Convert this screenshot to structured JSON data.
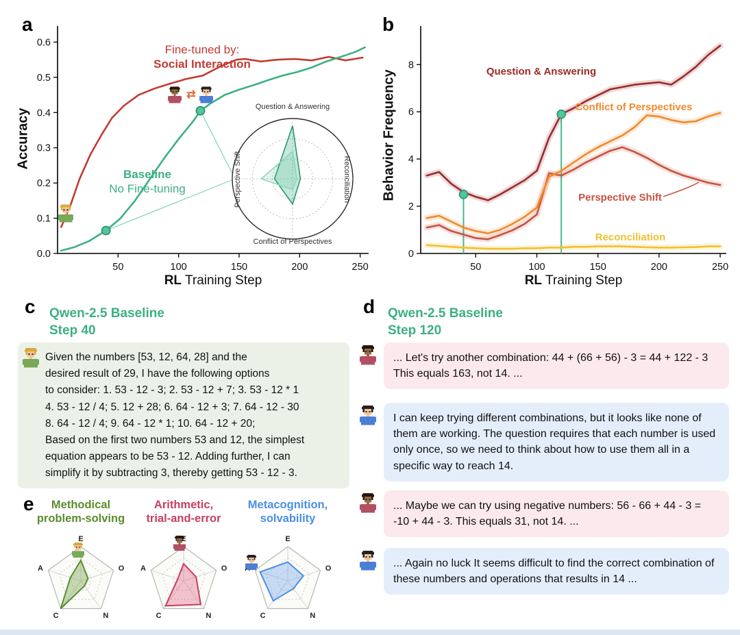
{
  "figure": {
    "panel_a": {
      "label": "a",
      "ylabel": "Accuracy",
      "xlabel_bold": "RL",
      "xlabel_rest": " Training Step",
      "ann_finetuned_line1": "Fine-tuned by:",
      "ann_finetuned_line2": "Social Interaction",
      "ann_baseline_line1": "Baseline",
      "ann_baseline_line2": "No Fine-tuning",
      "inset_axis_top": "Question & Answering",
      "inset_axis_right": "Reconciliation",
      "inset_axis_bottom": "Conflict of Perspectives",
      "inset_axis_left": "Perspective Shift"
    },
    "panel_b": {
      "label": "b",
      "ylabel": "Behavior Frequency",
      "xlabel_bold": "RL",
      "xlabel_rest": " Training Step"
    },
    "panel_c": {
      "label": "c",
      "title": "Qwen-2.5 Baseline\nStep 40",
      "transcript": "Given the numbers [53, 12, 64, 28] and the\ndesired result of 29, I have the following options\nto consider: 1. 53 - 12 - 3; 2. 53 - 12 + 7; 3. 53 - 12 * 1\n4. 53 - 12 / 4; 5. 12 + 28; 6. 64 - 12 + 3; 7. 64 - 12 - 30\n8. 64 - 12 / 4; 9. 64 - 12 * 1; 10. 64 - 12 + 20;\nBased on the first two numbers 53 and 12, the simplest\nequation appears to be 53 - 12. Adding further, I can\nsimplify it by subtracting 3, thereby getting 53 - 12 - 3."
    },
    "panel_d": {
      "label": "d",
      "title": "Qwen-2.5 Baseline\nStep 120",
      "bubbles": [
        {
          "speaker": "agent-brown",
          "text": "... Let's try another combination: 44 + (66 + 56) - 3 = 44 + 122 - 3  This equals 163, not 14. ..."
        },
        {
          "speaker": "agent-blue",
          "text": "I can keep trying different combinations, but it looks like none of them are working. The question requires that each number is used only once, so we need to think about how to use them all in a specific way to reach 14."
        },
        {
          "speaker": "agent-brown",
          "text": "... Maybe we can try using negative numbers: 56 - 66 + 44 - 3 = -10 + 44 - 3. This equals 31, not 14. ..."
        },
        {
          "speaker": "agent-blue",
          "text": "... Again no luck It seems difficult to find the correct combination of these numbers and operations that results in 14 ..."
        }
      ]
    },
    "panel_e": {
      "label": "e",
      "radar_titles": [
        "Methodical\nproblem-solving",
        "Arithmetic,\ntrial-and-error",
        "Metacognition,\nsolvability"
      ]
    }
  },
  "chart_data": [
    {
      "id": "panel-a",
      "type": "line",
      "title": "Accuracy vs RL training step",
      "xlabel": "RL Training Step",
      "ylabel": "Accuracy",
      "xlim": [
        0,
        257
      ],
      "ylim": [
        0,
        0.63
      ],
      "xticks": [
        {
          "v": 50,
          "l": "50"
        },
        {
          "v": 100,
          "l": "100"
        },
        {
          "v": 150,
          "l": "150"
        },
        {
          "v": 200,
          "l": "200"
        },
        {
          "v": 250,
          "l": "250"
        }
      ],
      "yticks": [
        {
          "v": 0,
          "l": "0.0"
        },
        {
          "v": 0.1,
          "l": "0.1"
        },
        {
          "v": 0.2,
          "l": "0.2"
        },
        {
          "v": 0.3,
          "l": "0.3"
        },
        {
          "v": 0.4,
          "l": "0.4"
        },
        {
          "v": 0.5,
          "l": "0.5"
        },
        {
          "v": 0.6,
          "l": "0.6"
        }
      ],
      "series": [
        {
          "name": "Fine-tuned by: Social Interaction",
          "color": "#c23a32",
          "x": [
            3,
            10,
            18,
            27,
            36,
            45,
            55,
            67,
            80,
            93,
            106,
            120,
            134,
            148,
            155,
            168,
            182,
            196,
            210,
            224,
            238,
            252
          ],
          "y": [
            0.075,
            0.13,
            0.21,
            0.28,
            0.335,
            0.385,
            0.42,
            0.45,
            0.468,
            0.482,
            0.495,
            0.505,
            0.53,
            0.55,
            0.552,
            0.545,
            0.55,
            0.552,
            0.548,
            0.558,
            0.548,
            0.556
          ]
        },
        {
          "name": "Baseline No Fine-tuning",
          "color": "#3cb081",
          "x": [
            3,
            14,
            26,
            40,
            52,
            64,
            76,
            88,
            100,
            112,
            118,
            126,
            138,
            150,
            162,
            174,
            186,
            198,
            210,
            222,
            234,
            246,
            254
          ],
          "y": [
            0.008,
            0.018,
            0.035,
            0.065,
            0.1,
            0.15,
            0.21,
            0.27,
            0.325,
            0.375,
            0.405,
            0.425,
            0.45,
            0.465,
            0.478,
            0.492,
            0.505,
            0.515,
            0.528,
            0.545,
            0.558,
            0.572,
            0.585
          ]
        }
      ],
      "markers": [
        {
          "x": 40,
          "y": 0.065
        },
        {
          "x": 118,
          "y": 0.405
        }
      ]
    },
    {
      "id": "panel-b",
      "type": "line",
      "title": "Behavior frequency vs RL training step",
      "xlabel": "RL Training Step",
      "ylabel": "Behavior Frequency",
      "xlim": [
        5,
        255
      ],
      "ylim": [
        0,
        9.4
      ],
      "xticks": [
        {
          "v": 50,
          "l": "50"
        },
        {
          "v": 100,
          "l": "100"
        },
        {
          "v": 150,
          "l": "150"
        },
        {
          "v": 200,
          "l": "200"
        },
        {
          "v": 250,
          "l": "250"
        }
      ],
      "yticks": [
        {
          "v": 0,
          "l": "0"
        },
        {
          "v": 2,
          "l": "2"
        },
        {
          "v": 4,
          "l": "4"
        },
        {
          "v": 6,
          "l": "6"
        },
        {
          "v": 8,
          "l": "8"
        }
      ],
      "vlines": [
        {
          "x": 40,
          "y": 2.5
        },
        {
          "x": 120,
          "y": 5.9
        }
      ],
      "markers": [
        {
          "x": 40,
          "y": 2.5
        },
        {
          "x": 120,
          "y": 5.9
        }
      ],
      "series": [
        {
          "name": "Reconciliation",
          "color": "#f0c030",
          "band": true,
          "x": [
            10,
            20,
            30,
            40,
            50,
            60,
            70,
            80,
            90,
            100,
            110,
            120,
            130,
            140,
            150,
            160,
            170,
            180,
            190,
            200,
            210,
            220,
            230,
            240,
            250
          ],
          "y": [
            0.35,
            0.32,
            0.28,
            0.25,
            0.22,
            0.2,
            0.2,
            0.2,
            0.22,
            0.22,
            0.25,
            0.25,
            0.28,
            0.28,
            0.3,
            0.3,
            0.3,
            0.28,
            0.26,
            0.25,
            0.25,
            0.26,
            0.27,
            0.3,
            0.3
          ]
        },
        {
          "name": "Perspective Shift",
          "color": "#c65340",
          "band": true,
          "x": [
            10,
            20,
            30,
            40,
            50,
            60,
            70,
            80,
            90,
            100,
            110,
            120,
            130,
            140,
            150,
            160,
            170,
            180,
            190,
            200,
            210,
            220,
            230,
            240,
            250
          ],
          "y": [
            1.1,
            1.2,
            0.95,
            0.8,
            0.65,
            0.6,
            0.78,
            0.98,
            1.25,
            1.65,
            3.4,
            3.3,
            3.55,
            3.85,
            4.1,
            4.35,
            4.5,
            4.3,
            4.05,
            3.75,
            3.5,
            3.3,
            3.15,
            3.0,
            2.9
          ]
        },
        {
          "name": "Conflict of Perspectives",
          "color": "#f08a2e",
          "band": true,
          "x": [
            10,
            20,
            30,
            40,
            50,
            60,
            70,
            80,
            90,
            100,
            110,
            120,
            130,
            140,
            150,
            160,
            170,
            180,
            190,
            200,
            210,
            220,
            230,
            240,
            250
          ],
          "y": [
            1.5,
            1.6,
            1.35,
            1.1,
            0.95,
            0.85,
            1.0,
            1.25,
            1.55,
            1.95,
            3.25,
            3.5,
            3.85,
            4.2,
            4.5,
            4.75,
            5.0,
            5.35,
            5.85,
            5.8,
            5.65,
            5.55,
            5.6,
            5.8,
            5.95
          ]
        },
        {
          "name": "Question & Answering",
          "color": "#9b2b2b",
          "band": true,
          "x": [
            10,
            20,
            30,
            40,
            50,
            60,
            70,
            80,
            90,
            100,
            110,
            120,
            130,
            140,
            150,
            160,
            170,
            180,
            190,
            200,
            210,
            220,
            230,
            240,
            250
          ],
          "y": [
            3.3,
            3.45,
            2.95,
            2.6,
            2.4,
            2.25,
            2.5,
            2.8,
            3.1,
            3.5,
            4.9,
            5.9,
            6.15,
            6.45,
            6.7,
            6.95,
            7.05,
            7.15,
            7.2,
            7.25,
            7.15,
            7.5,
            7.9,
            8.4,
            8.8
          ]
        }
      ]
    },
    {
      "id": "inset-radar",
      "type": "radar",
      "axes": [
        "Question & Answering",
        "Reconciliation",
        "Conflict of Perspectives",
        "Perspective Shift"
      ],
      "series": [
        {
          "name": "Step 120",
          "color": "#2e9673",
          "fill": "rgba(62,180,137,0.30)",
          "values": [
            0.88,
            0.13,
            0.42,
            0.3
          ]
        },
        {
          "name": "Step 40",
          "color": "#8fd6bb",
          "fill": "rgba(62,180,137,0.15)",
          "values": [
            0.45,
            0.07,
            0.18,
            0.52
          ]
        }
      ]
    },
    {
      "id": "radar-methodical",
      "type": "radar",
      "axes": [
        "E",
        "O",
        "N",
        "C",
        "A"
      ],
      "series": [
        {
          "name": "Methodical problem-solving",
          "color": "#5b8c2e",
          "fill": "rgba(120,165,70,0.40)",
          "values": [
            0.6,
            0.22,
            0.18,
            1.0,
            0.32
          ]
        }
      ]
    },
    {
      "id": "radar-arithmetic",
      "type": "radar",
      "axes": [
        "E",
        "O",
        "N",
        "C",
        "A"
      ],
      "series": [
        {
          "name": "Arithmetic, trial-and-error",
          "color": "#c73e63",
          "fill": "rgba(225,90,120,0.35)",
          "values": [
            0.5,
            0.38,
            0.85,
            0.9,
            0.18
          ]
        }
      ]
    },
    {
      "id": "radar-metacognition",
      "type": "radar",
      "axes": [
        "E",
        "O",
        "N",
        "C",
        "A"
      ],
      "series": [
        {
          "name": "Metacognition, solvability",
          "color": "#4a90e2",
          "fill": "rgba(100,160,235,0.35)",
          "values": [
            0.55,
            0.48,
            0.28,
            0.72,
            0.85
          ]
        }
      ]
    }
  ]
}
